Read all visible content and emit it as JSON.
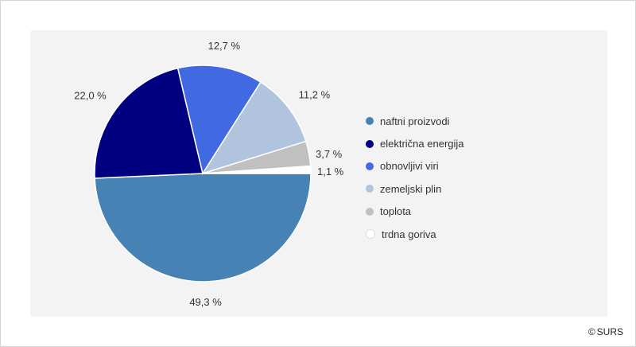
{
  "chart_data": {
    "type": "pie",
    "title": "",
    "categories": [
      "naftni proizvodi",
      "električna energija",
      "obnovljivi viri",
      "zemeljski plin",
      "toplota",
      "trdna goriva"
    ],
    "values": [
      49.3,
      22.0,
      12.7,
      11.2,
      3.7,
      1.1
    ],
    "value_labels": [
      "49,3 %",
      "22,0 %",
      "12,7 %",
      "11,2 %",
      "3,7 %",
      "1,1 %"
    ],
    "colors": [
      "#4682b4",
      "#000080",
      "#4169e1",
      "#b0c4de",
      "#c0c0c0",
      "#ffffff"
    ],
    "legend_position": "right"
  },
  "footer": {
    "copyright_icon": "copyright-icon",
    "copyright_symbol": "©",
    "source": "SURS"
  }
}
